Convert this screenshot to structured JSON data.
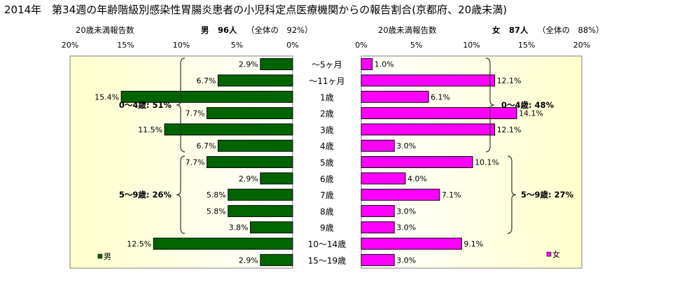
{
  "title": "2014年　第34週の年齢階級別感染性胃腸炎患者の小児科定点医療機関からの報告割合(京都府、20歳未満)",
  "male_header": {
    "count_label": "20歳未満報告数",
    "summary_sex": "男",
    "summary_count": "96人",
    "summary_share": "（全体の　92%）"
  },
  "female_header": {
    "count_label": "20歳未満報告数",
    "summary_sex": "女",
    "summary_count": "87人",
    "summary_share": "（全体の　88%）"
  },
  "colors": {
    "male": "#006400",
    "female": "#ff00ff",
    "plot_bg": "#ffffcc"
  },
  "chart_data": [
    {
      "type": "bar",
      "orientation": "horizontal",
      "direction": "right-to-left",
      "series": [
        {
          "name": "男",
          "values": [
            2.9,
            6.7,
            15.4,
            7.7,
            11.5,
            6.7,
            7.7,
            2.9,
            5.8,
            5.8,
            3.8,
            12.5,
            2.9
          ]
        }
      ],
      "categories": [
        "～5ヶ月",
        "～11ヶ月",
        "1歳",
        "2歳",
        "3歳",
        "4歳",
        "5歳",
        "6歳",
        "7歳",
        "8歳",
        "9歳",
        "10～14歳",
        "15～19歳"
      ],
      "xlim": [
        0,
        20
      ],
      "xticks": [
        "20%",
        "15%",
        "10%",
        "5%",
        "0%"
      ],
      "data_labels": [
        "2.9%",
        "6.7%",
        "15.4%",
        "7.7%",
        "11.5%",
        "6.7%",
        "7.7%",
        "2.9%",
        "5.8%",
        "5.8%",
        "3.8%",
        "12.5%",
        "2.9%"
      ],
      "legend": {
        "label": "男",
        "placement": "bottom-left"
      },
      "annotations": [
        {
          "label": "0～4歳: 51%",
          "span": [
            0,
            5
          ]
        },
        {
          "label": "5～9歳: 26%",
          "span": [
            6,
            10
          ]
        }
      ]
    },
    {
      "type": "bar",
      "orientation": "horizontal",
      "direction": "left-to-right",
      "series": [
        {
          "name": "女",
          "values": [
            1.0,
            12.1,
            6.1,
            14.1,
            12.1,
            3.0,
            10.1,
            4.0,
            7.1,
            3.0,
            3.0,
            9.1,
            3.0
          ]
        }
      ],
      "categories": [
        "～5ヶ月",
        "～11ヶ月",
        "1歳",
        "2歳",
        "3歳",
        "4歳",
        "5歳",
        "6歳",
        "7歳",
        "8歳",
        "9歳",
        "10～14歳",
        "15～19歳"
      ],
      "xlim": [
        0,
        20
      ],
      "xticks": [
        "0%",
        "5%",
        "10%",
        "15%",
        "20%"
      ],
      "data_labels": [
        "1.0%",
        "12.1%",
        "6.1%",
        "14.1%",
        "12.1%",
        "3.0%",
        "10.1%",
        "4.0%",
        "7.1%",
        "3.0%",
        "3.0%",
        "9.1%",
        "3.0%"
      ],
      "legend": {
        "label": "女",
        "placement": "bottom-right"
      },
      "annotations": [
        {
          "label": "0～4歳: 48%",
          "span": [
            0,
            5
          ]
        },
        {
          "label": "5～9歳: 27%",
          "span": [
            6,
            10
          ]
        }
      ]
    }
  ]
}
